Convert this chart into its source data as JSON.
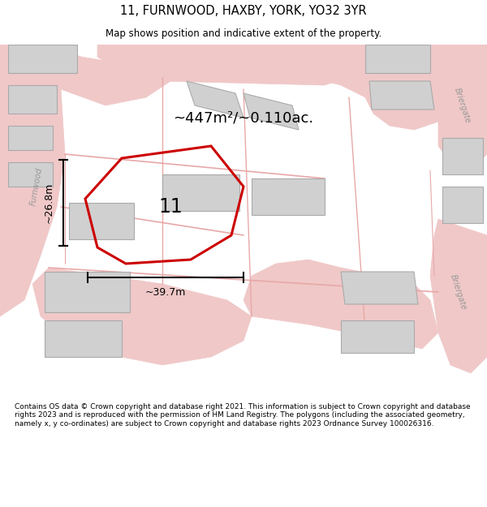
{
  "title": "11, FURNWOOD, HAXBY, YORK, YO32 3YR",
  "subtitle": "Map shows position and indicative extent of the property.",
  "footer": "Contains OS data © Crown copyright and database right 2021. This information is subject to Crown copyright and database rights 2023 and is reproduced with the permission of HM Land Registry. The polygons (including the associated geometry, namely x, y co-ordinates) are subject to Crown copyright and database rights 2023 Ordnance Survey 100026316.",
  "area_text": "~447m²/~0.110ac.",
  "dim_width_label": "~39.7m",
  "dim_height_label": "~26.8m",
  "highlight_color": "#cc0000",
  "map_bg": "#e8e8e8",
  "white": "#ffffff",
  "building_fill": "#d0d0d0",
  "building_edge": "#aaaaaa",
  "road_fill": "#f0c8c8",
  "road_edge": "#e09898",
  "road_line": "#e8a0a0",
  "label_color": "#999999"
}
